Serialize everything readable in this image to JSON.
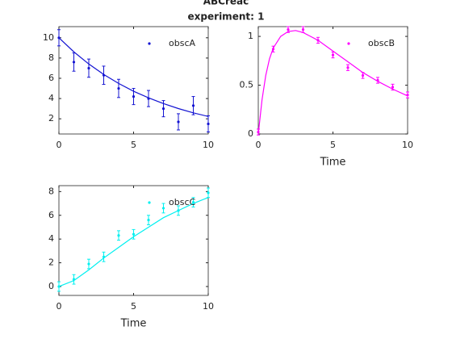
{
  "figure": {
    "title": "ABCreac",
    "subtitle": "experiment: 1"
  },
  "chart_data": [
    {
      "type": "errorbar",
      "legend": "northeast",
      "grid": false,
      "xlim": [
        0,
        10
      ],
      "xticks": [
        0,
        5,
        10
      ],
      "ylim": [
        0.5,
        11.1
      ],
      "yticks": [
        2,
        4,
        6,
        8,
        10
      ],
      "x": [
        0,
        1,
        2,
        3,
        4,
        5,
        6,
        7,
        8,
        9,
        10
      ],
      "series": [
        {
          "name": "obscA",
          "color": "#1414d2",
          "values": [
            10.0,
            7.6,
            7.0,
            6.3,
            5.0,
            4.2,
            4.0,
            3.0,
            1.7,
            3.3,
            1.5
          ],
          "errors": [
            0.8,
            0.9,
            0.9,
            0.9,
            0.9,
            0.8,
            0.8,
            0.8,
            0.8,
            0.9,
            0.8
          ]
        }
      ],
      "fit": {
        "color": "#1414d2",
        "x": [
          0,
          1,
          2,
          3,
          4,
          5,
          6,
          7,
          8,
          9,
          10
        ],
        "values": [
          10,
          8.61,
          7.41,
          6.38,
          5.49,
          4.72,
          4.07,
          3.5,
          3.01,
          2.59,
          2.23
        ]
      }
    },
    {
      "type": "errorbar",
      "legend": "northeast",
      "grid": false,
      "xlabel": "Time",
      "xlim": [
        0,
        10
      ],
      "xticks": [
        0,
        5,
        10
      ],
      "ylim": [
        0,
        1.1
      ],
      "yticks": [
        0,
        0.5,
        1
      ],
      "x": [
        0,
        1,
        2,
        3,
        4,
        5,
        6,
        7,
        8,
        9,
        10
      ],
      "series": [
        {
          "name": "obscB",
          "color": "#ff00ff",
          "values": [
            0.02,
            0.87,
            1.07,
            1.07,
            0.96,
            0.81,
            0.68,
            0.6,
            0.55,
            0.48,
            0.4
          ],
          "errors": [
            0.03,
            0.03,
            0.03,
            0.03,
            0.03,
            0.03,
            0.03,
            0.03,
            0.03,
            0.03,
            0.03
          ]
        }
      ],
      "fit": {
        "color": "#ff00ff",
        "x": [
          0,
          0.25,
          0.5,
          0.75,
          1,
          1.5,
          2,
          2.5,
          3,
          4,
          5,
          6,
          7,
          8,
          9,
          10
        ],
        "values": [
          0,
          0.35,
          0.6,
          0.77,
          0.88,
          1.0,
          1.05,
          1.06,
          1.04,
          0.96,
          0.85,
          0.74,
          0.63,
          0.54,
          0.46,
          0.39
        ]
      }
    },
    {
      "type": "errorbar",
      "legend": "northeast",
      "grid": false,
      "xlabel": "Time",
      "xlim": [
        0,
        10
      ],
      "xticks": [
        0,
        5,
        10
      ],
      "ylim": [
        -0.75,
        8.5
      ],
      "yticks": [
        0,
        2,
        4,
        6,
        8
      ],
      "x": [
        0,
        1,
        2,
        3,
        4,
        5,
        6,
        7,
        8,
        9,
        10
      ],
      "series": [
        {
          "name": "obscC",
          "color": "#00f0f0",
          "values": [
            0.0,
            0.6,
            1.9,
            2.5,
            4.3,
            4.4,
            5.6,
            6.6,
            6.4,
            7.1,
            7.9
          ],
          "errors": [
            0.4,
            0.4,
            0.4,
            0.4,
            0.4,
            0.4,
            0.4,
            0.4,
            0.4,
            0.4,
            0.4
          ]
        }
      ],
      "fit": {
        "color": "#00f0f0",
        "x": [
          0,
          1,
          2,
          3,
          4,
          5,
          6,
          7,
          8,
          9,
          10
        ],
        "values": [
          0,
          0.5,
          1.4,
          2.4,
          3.3,
          4.2,
          5.0,
          5.8,
          6.4,
          7.0,
          7.5
        ]
      }
    }
  ]
}
